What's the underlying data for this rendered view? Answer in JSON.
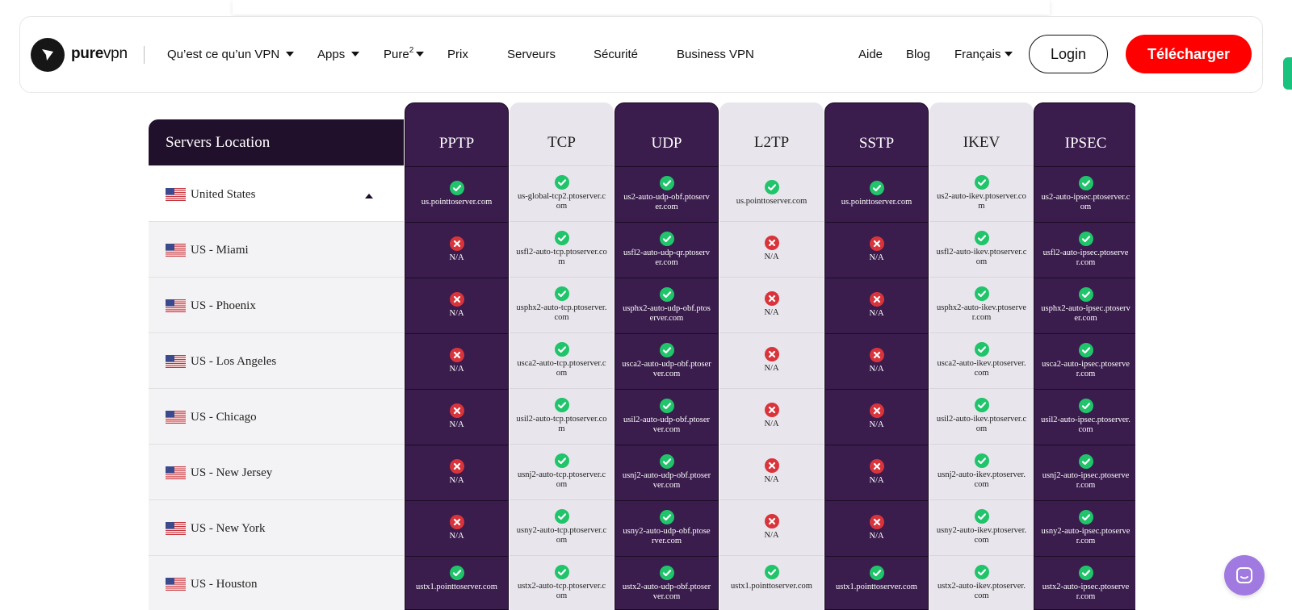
{
  "nav": {
    "logo_bold": "pure",
    "logo_light": "vpn",
    "items": [
      {
        "label": "Qu’est ce qu’un VPN",
        "dropdown": true
      },
      {
        "label": "Apps",
        "dropdown": true
      },
      {
        "label": "Pure",
        "sup": "2",
        "dropdown": true
      },
      {
        "label": "Prix",
        "dropdown": false
      },
      {
        "label": "Serveurs",
        "dropdown": false
      },
      {
        "label": "Sécurité",
        "dropdown": false
      },
      {
        "label": "Business VPN",
        "dropdown": false
      }
    ],
    "right_items": [
      {
        "label": "Aide",
        "dropdown": false
      },
      {
        "label": "Blog",
        "dropdown": false
      },
      {
        "label": "Français",
        "dropdown": true
      }
    ],
    "login_label": "Login",
    "download_label": "Télécharger"
  },
  "table": {
    "location_header": "Servers Location",
    "columns": [
      {
        "name": "PPTP",
        "theme": "dark"
      },
      {
        "name": "TCP",
        "theme": "light"
      },
      {
        "name": "UDP",
        "theme": "dark"
      },
      {
        "name": "L2TP",
        "theme": "light"
      },
      {
        "name": "SSTP",
        "theme": "dark"
      },
      {
        "name": "IKEV",
        "theme": "light"
      },
      {
        "name": "IPSEC",
        "theme": "dark"
      }
    ],
    "rows": [
      {
        "location": "United States",
        "expanded": true,
        "cells": [
          {
            "ok": true,
            "text": "us.pointtoserver.com"
          },
          {
            "ok": true,
            "text": "us-global-tcp2.ptoserver.com"
          },
          {
            "ok": true,
            "text": "us2-auto-udp-obf.ptoserver.com"
          },
          {
            "ok": true,
            "text": "us.pointtoserver.com"
          },
          {
            "ok": true,
            "text": "us.pointtoserver.com"
          },
          {
            "ok": true,
            "text": "us2-auto-ikev.ptoserver.com"
          },
          {
            "ok": true,
            "text": "us2-auto-ipsec.ptoserver.com"
          }
        ]
      },
      {
        "location": "US - Miami",
        "cells": [
          {
            "ok": false,
            "text": "N/A"
          },
          {
            "ok": true,
            "text": "usfl2-auto-tcp.ptoserver.com"
          },
          {
            "ok": true,
            "text": "usfl2-auto-udp-qr.ptoserver.com"
          },
          {
            "ok": false,
            "text": "N/A"
          },
          {
            "ok": false,
            "text": "N/A"
          },
          {
            "ok": true,
            "text": "usfl2-auto-ikev.ptoserver.com"
          },
          {
            "ok": true,
            "text": "usfl2-auto-ipsec.ptoserver.com"
          }
        ]
      },
      {
        "location": "US - Phoenix",
        "cells": [
          {
            "ok": false,
            "text": "N/A"
          },
          {
            "ok": true,
            "text": "usphx2-auto-tcp.ptoserver.com"
          },
          {
            "ok": true,
            "text": "usphx2-auto-udp-obf.ptoserver.com"
          },
          {
            "ok": false,
            "text": "N/A"
          },
          {
            "ok": false,
            "text": "N/A"
          },
          {
            "ok": true,
            "text": "usphx2-auto-ikev.ptoserver.com"
          },
          {
            "ok": true,
            "text": "usphx2-auto-ipsec.ptoserver.com"
          }
        ]
      },
      {
        "location": "US - Los Angeles",
        "cells": [
          {
            "ok": false,
            "text": "N/A"
          },
          {
            "ok": true,
            "text": "usca2-auto-tcp.ptoserver.com"
          },
          {
            "ok": true,
            "text": "usca2-auto-udp-obf.ptoserver.com"
          },
          {
            "ok": false,
            "text": "N/A"
          },
          {
            "ok": false,
            "text": "N/A"
          },
          {
            "ok": true,
            "text": "usca2-auto-ikev.ptoserver.com"
          },
          {
            "ok": true,
            "text": "usca2-auto-ipsec.ptoserver.com"
          }
        ]
      },
      {
        "location": "US - Chicago",
        "cells": [
          {
            "ok": false,
            "text": "N/A"
          },
          {
            "ok": true,
            "text": "usil2-auto-tcp.ptoserver.com"
          },
          {
            "ok": true,
            "text": "usil2-auto-udp-obf.ptoserver.com"
          },
          {
            "ok": false,
            "text": "N/A"
          },
          {
            "ok": false,
            "text": "N/A"
          },
          {
            "ok": true,
            "text": "usil2-auto-ikev.ptoserver.com"
          },
          {
            "ok": true,
            "text": "usil2-auto-ipsec.ptoserver.com"
          }
        ]
      },
      {
        "location": "US - New Jersey",
        "cells": [
          {
            "ok": false,
            "text": "N/A"
          },
          {
            "ok": true,
            "text": "usnj2-auto-tcp.ptoserver.com"
          },
          {
            "ok": true,
            "text": "usnj2-auto-udp-obf.ptoserver.com"
          },
          {
            "ok": false,
            "text": "N/A"
          },
          {
            "ok": false,
            "text": "N/A"
          },
          {
            "ok": true,
            "text": "usnj2-auto-ikev.ptoserver.com"
          },
          {
            "ok": true,
            "text": "usnj2-auto-ipsec.ptoserver.com"
          }
        ]
      },
      {
        "location": "US - New York",
        "cells": [
          {
            "ok": false,
            "text": "N/A"
          },
          {
            "ok": true,
            "text": "usny2-auto-tcp.ptoserver.com"
          },
          {
            "ok": true,
            "text": "usny2-auto-udp-obf.ptoserver.com"
          },
          {
            "ok": false,
            "text": "N/A"
          },
          {
            "ok": false,
            "text": "N/A"
          },
          {
            "ok": true,
            "text": "usny2-auto-ikev.ptoserver.com"
          },
          {
            "ok": true,
            "text": "usny2-auto-ipsec.ptoserver.com"
          }
        ]
      },
      {
        "location": "US - Houston",
        "cells": [
          {
            "ok": true,
            "text": "ustx1.pointtoserver.com"
          },
          {
            "ok": true,
            "text": "ustx2-auto-tcp.ptoserver.com"
          },
          {
            "ok": true,
            "text": "ustx2-auto-udp-obf.ptoserver.com"
          },
          {
            "ok": true,
            "text": "ustx1.pointtoserver.com"
          },
          {
            "ok": true,
            "text": "ustx1.pointtoserver.com"
          },
          {
            "ok": true,
            "text": "ustx2-auto-ikev.ptoserver.com"
          },
          {
            "ok": true,
            "text": "ustx2-auto-ipsec.ptoserver.com"
          }
        ]
      }
    ]
  },
  "colors": {
    "download_red": "#ff0000",
    "header_dark": "#21102b",
    "column_dark": "#3a1c4d",
    "column_light": "#e8e6ec",
    "check_green": "#20c46a",
    "cross_red": "#d9343b",
    "chat_purple": "#a07ae0"
  },
  "icons": {
    "logo": "purevpn-logo-icon",
    "check": "check-circle-icon",
    "cross": "x-circle-icon",
    "flag": "us-flag-icon",
    "chat": "chat-icon"
  }
}
